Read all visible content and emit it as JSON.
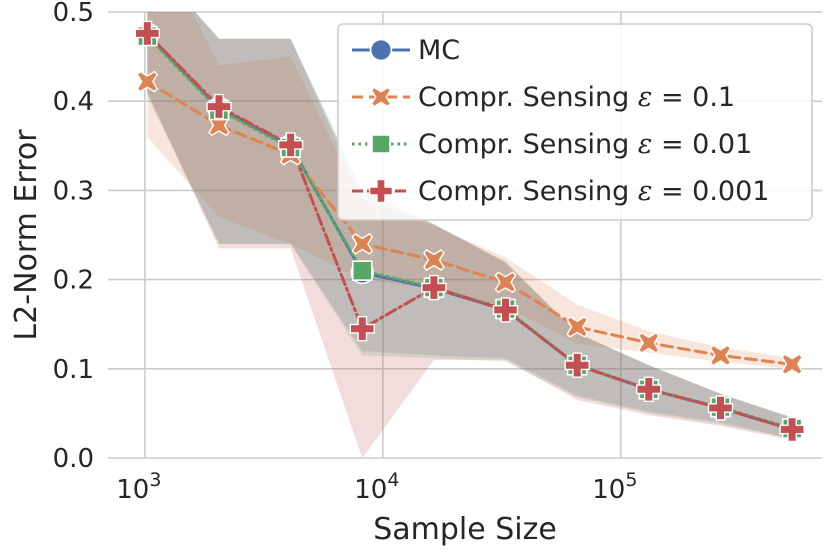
{
  "chart_data": {
    "type": "line",
    "title": "",
    "xlabel": "Sample Size",
    "ylabel": "L2-Norm Error",
    "xscale": "log",
    "xlim": [
      700,
      700000
    ],
    "ylim": [
      0.0,
      0.5
    ],
    "yticks": [
      0.0,
      0.1,
      0.2,
      0.3,
      0.4,
      0.5
    ],
    "ytick_labels": [
      "0.0",
      "0.1",
      "0.2",
      "0.3",
      "0.4",
      "0.5"
    ],
    "xticks": [
      1000,
      10000,
      100000
    ],
    "xtick_labels": [
      {
        "base": "10",
        "exp": "3"
      },
      {
        "base": "10",
        "exp": "4"
      },
      {
        "base": "10",
        "exp": "5"
      }
    ],
    "grid": true,
    "legend_position": "top-right",
    "x": [
      1024,
      2048,
      4096,
      8192,
      16384,
      32768,
      65536,
      131072,
      262144,
      524288
    ],
    "series": [
      {
        "name": "MC",
        "color": "#4c72b0",
        "linestyle": "solid",
        "marker": "circle",
        "values": [
          0.475,
          0.392,
          0.35,
          0.208,
          0.19,
          0.166,
          0.104,
          0.077,
          0.056,
          0.032
        ],
        "lower": [
          0.41,
          0.24,
          0.24,
          0.12,
          0.115,
          0.112,
          0.07,
          0.052,
          0.04,
          0.022
        ],
        "upper": [
          0.56,
          0.47,
          0.47,
          0.3,
          0.262,
          0.218,
          0.14,
          0.104,
          0.072,
          0.045
        ]
      },
      {
        "name": "Compr. Sensing ε = 0.1",
        "color": "#dd8452",
        "linestyle": "dashed",
        "marker": "x",
        "values": [
          0.422,
          0.373,
          0.34,
          0.24,
          0.222,
          0.197,
          0.147,
          0.129,
          0.115,
          0.105
        ],
        "lower": [
          0.36,
          0.27,
          0.24,
          0.2,
          0.19,
          0.17,
          0.128,
          0.118,
          0.108,
          0.1
        ],
        "upper": [
          0.6,
          0.44,
          0.45,
          0.285,
          0.26,
          0.225,
          0.172,
          0.142,
          0.124,
          0.112
        ]
      },
      {
        "name": "Compr. Sensing ε = 0.01",
        "color": "#55a868",
        "linestyle": "dotted",
        "marker": "square",
        "values": [
          0.473,
          0.39,
          0.348,
          0.21,
          0.191,
          0.167,
          0.104,
          0.077,
          0.057,
          0.033
        ],
        "lower": [
          0.405,
          0.24,
          0.24,
          0.115,
          0.112,
          0.108,
          0.068,
          0.05,
          0.038,
          0.021
        ],
        "upper": [
          0.56,
          0.47,
          0.47,
          0.3,
          0.262,
          0.22,
          0.14,
          0.104,
          0.072,
          0.046
        ]
      },
      {
        "name": "Compr. Sensing ε = 0.001",
        "color": "#c44e52",
        "linestyle": "dashdot",
        "marker": "plus",
        "values": [
          0.476,
          0.394,
          0.351,
          0.145,
          0.191,
          0.166,
          0.104,
          0.077,
          0.056,
          0.032
        ],
        "lower": [
          0.41,
          0.235,
          0.235,
          0.0,
          0.11,
          0.11,
          0.065,
          0.048,
          0.036,
          0.02
        ],
        "upper": [
          0.56,
          0.47,
          0.47,
          0.29,
          0.262,
          0.22,
          0.14,
          0.104,
          0.072,
          0.045
        ]
      }
    ],
    "legend": [
      {
        "label": "MC",
        "series": 0
      },
      {
        "label": "Compr. Sensing ",
        "symbol": "ε",
        "eq": " = ",
        "value": "0.1",
        "series": 1
      },
      {
        "label": "Compr. Sensing ",
        "symbol": "ε",
        "eq": " = ",
        "value": "0.01",
        "series": 2
      },
      {
        "label": "Compr. Sensing ",
        "symbol": "ε",
        "eq": " = ",
        "value": "0.001",
        "series": 3
      }
    ]
  }
}
